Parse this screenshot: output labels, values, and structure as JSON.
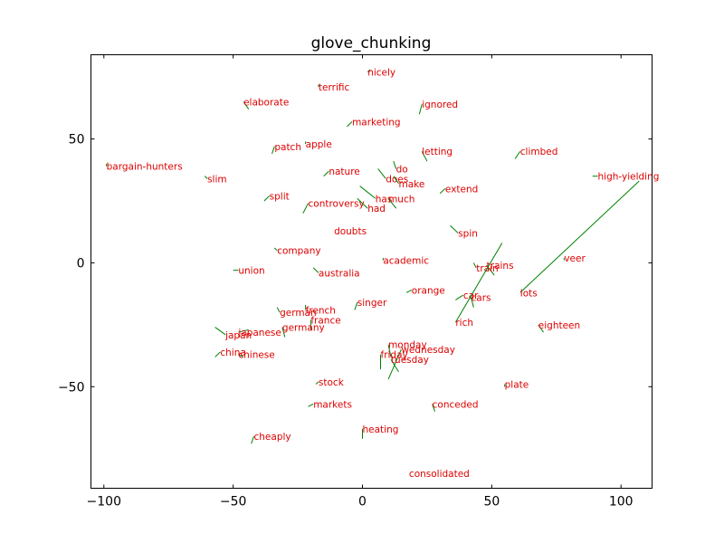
{
  "chart_data": {
    "type": "scatter",
    "title": "glove_chunking",
    "xlabel": "",
    "ylabel": "",
    "xlim": [
      -105,
      112
    ],
    "ylim": [
      -91,
      84
    ],
    "xticks": [
      -100,
      -50,
      0,
      50,
      100
    ],
    "yticks": [
      -50,
      0,
      50
    ],
    "xtick_labels": [
      "−100",
      "−50",
      "0",
      "50",
      "100"
    ],
    "ytick_labels": [
      "−50",
      "0",
      "50"
    ],
    "grid": false,
    "label_color": "#dd0000",
    "line_color": "#008000",
    "points": [
      {
        "label": "nicely",
        "x": 2,
        "y": 77,
        "x0": 3,
        "y0": 78
      },
      {
        "label": "terrific",
        "x": -17,
        "y": 71,
        "x0": -17,
        "y0": 72
      },
      {
        "label": "elaborate",
        "x": -46,
        "y": 65,
        "x0": -44,
        "y0": 62
      },
      {
        "label": "ignored",
        "x": 23,
        "y": 64,
        "x0": 22,
        "y0": 60
      },
      {
        "label": "marketing",
        "x": -4,
        "y": 57,
        "x0": -6,
        "y0": 55
      },
      {
        "label": "patch",
        "x": -34,
        "y": 47,
        "x0": -35,
        "y0": 44
      },
      {
        "label": "apple",
        "x": -22,
        "y": 48,
        "x0": -22,
        "y0": 49
      },
      {
        "label": "letting",
        "x": 23,
        "y": 45,
        "x0": 25,
        "y0": 41
      },
      {
        "label": "climbed",
        "x": 61,
        "y": 45,
        "x0": 59,
        "y0": 42
      },
      {
        "label": "bargain-hunters",
        "x": -99,
        "y": 39,
        "x0": -99,
        "y0": 40
      },
      {
        "label": "nature",
        "x": -13,
        "y": 37,
        "x0": -15,
        "y0": 35
      },
      {
        "label": "do",
        "x": 13,
        "y": 38,
        "x0": 12,
        "y0": 41
      },
      {
        "label": "does",
        "x": 9,
        "y": 34,
        "x0": 6,
        "y0": 38
      },
      {
        "label": "make",
        "x": 14,
        "y": 32,
        "x0": 12,
        "y0": 35
      },
      {
        "label": "high-yielding",
        "x": 91,
        "y": 35,
        "x0": 89,
        "y0": 35
      },
      {
        "label": "slim",
        "x": -60,
        "y": 34,
        "x0": -61,
        "y0": 35
      },
      {
        "label": "extend",
        "x": 32,
        "y": 30,
        "x0": 30,
        "y0": 28
      },
      {
        "label": "split",
        "x": -36,
        "y": 27,
        "x0": -38,
        "y0": 25
      },
      {
        "label": "has",
        "x": 5,
        "y": 26,
        "x0": -1,
        "y0": 31
      },
      {
        "label": "much",
        "x": 10,
        "y": 26,
        "x0": 13,
        "y0": 22
      },
      {
        "label": "controversy",
        "x": -21,
        "y": 24,
        "x0": -23,
        "y0": 20
      },
      {
        "label": "had",
        "x": 2,
        "y": 22,
        "x0": -2,
        "y0": 26
      },
      {
        "label": "doubts",
        "x": -11,
        "y": 13,
        "x0": -11,
        "y0": 13
      },
      {
        "label": "spin",
        "x": 37,
        "y": 12,
        "x0": 34,
        "y0": 15
      },
      {
        "label": "company",
        "x": -33,
        "y": 5,
        "x0": -34,
        "y0": 6
      },
      {
        "label": "academic",
        "x": 8,
        "y": 1,
        "x0": 8,
        "y0": 2
      },
      {
        "label": "veer",
        "x": 78,
        "y": 2,
        "x0": 78,
        "y0": 1
      },
      {
        "label": "trains",
        "x": 48,
        "y": -1,
        "x0": 51,
        "y0": -5
      },
      {
        "label": "train",
        "x": 44,
        "y": -2,
        "x0": 43,
        "y0": 0
      },
      {
        "label": "union",
        "x": -48,
        "y": -3,
        "x0": -50,
        "y0": -3
      },
      {
        "label": "australia",
        "x": -17,
        "y": -4,
        "x0": -19,
        "y0": -2
      },
      {
        "label": "orange",
        "x": 19,
        "y": -11,
        "x0": 17,
        "y0": -12
      },
      {
        "label": "lots",
        "x": 61,
        "y": -12,
        "x0": 107,
        "y0": 33
      },
      {
        "label": "car",
        "x": 39,
        "y": -13,
        "x0": 36,
        "y0": -15
      },
      {
        "label": "cars",
        "x": 42,
        "y": -14,
        "x0": 43,
        "y0": -18
      },
      {
        "label": "singer",
        "x": -2,
        "y": -16,
        "x0": -3,
        "y0": -19
      },
      {
        "label": "french",
        "x": -22,
        "y": -19,
        "x0": -22,
        "y0": -17
      },
      {
        "label": "german",
        "x": -32,
        "y": -20,
        "x0": -33,
        "y0": -18
      },
      {
        "label": "france",
        "x": -20,
        "y": -23,
        "x0": -20,
        "y0": -27
      },
      {
        "label": "germany",
        "x": -31,
        "y": -26,
        "x0": -30,
        "y0": -30
      },
      {
        "label": "rich",
        "x": 36,
        "y": -24,
        "x0": 54,
        "y0": 8
      },
      {
        "label": "eighteen",
        "x": 68,
        "y": -25,
        "x0": 70,
        "y0": -28
      },
      {
        "label": "japanese",
        "x": -48,
        "y": -28,
        "x0": -44,
        "y0": -27
      },
      {
        "label": "japan",
        "x": -53,
        "y": -29,
        "x0": -57,
        "y0": -26
      },
      {
        "label": "monday",
        "x": 10,
        "y": -33,
        "x0": 11,
        "y0": -38
      },
      {
        "label": "wednesday",
        "x": 15,
        "y": -35,
        "x0": 10,
        "y0": -47
      },
      {
        "label": "friday",
        "x": 7,
        "y": -37,
        "x0": 7,
        "y0": -43
      },
      {
        "label": "tuesday",
        "x": 11,
        "y": -39,
        "x0": 14,
        "y0": -44
      },
      {
        "label": "china",
        "x": -55,
        "y": -36,
        "x0": -57,
        "y0": -38
      },
      {
        "label": "chinese",
        "x": -48,
        "y": -37,
        "x0": -46,
        "y0": -38
      },
      {
        "label": "stock",
        "x": -17,
        "y": -48,
        "x0": -18,
        "y0": -49
      },
      {
        "label": "plate",
        "x": 55,
        "y": -49,
        "x0": 55,
        "y0": -50
      },
      {
        "label": "conceded",
        "x": 27,
        "y": -57,
        "x0": 28,
        "y0": -60
      },
      {
        "label": "markets",
        "x": -19,
        "y": -57,
        "x0": -21,
        "y0": -58
      },
      {
        "label": "heating",
        "x": 0,
        "y": -67,
        "x0": 0,
        "y0": -71
      },
      {
        "label": "cheaply",
        "x": -42,
        "y": -70,
        "x0": -43,
        "y0": -73
      },
      {
        "label": "consolidated",
        "x": 18,
        "y": -85,
        "x0": 18,
        "y0": -85
      }
    ]
  }
}
